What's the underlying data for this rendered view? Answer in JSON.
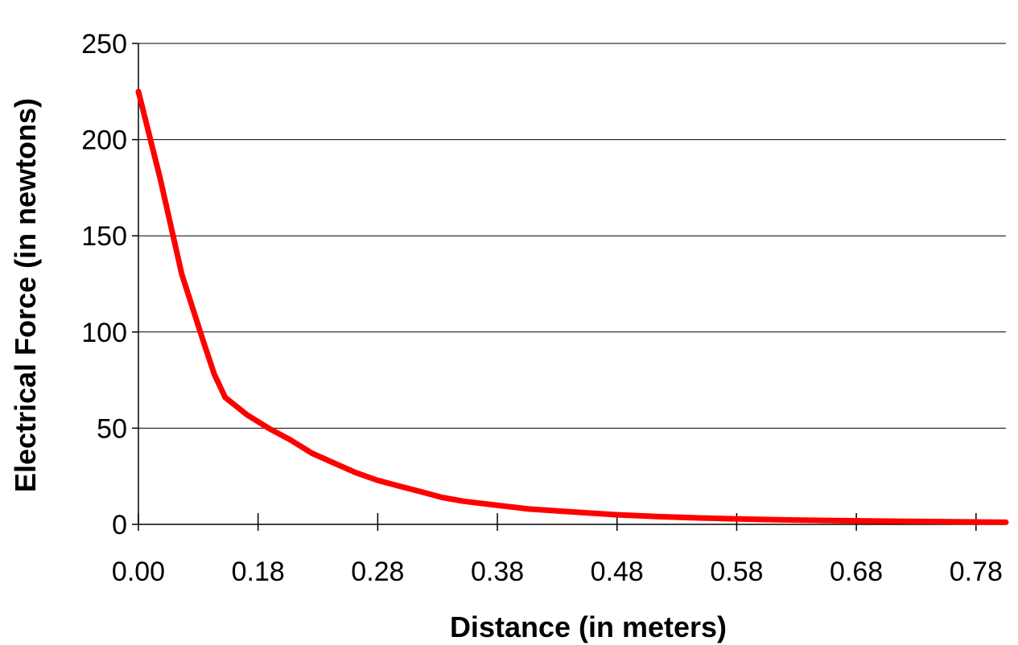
{
  "chart_data": {
    "type": "line",
    "xlabel": "Distance (in meters)",
    "ylabel": "Electrical Force (in newtons)",
    "x_tick_labels": [
      "0.00",
      "0.18",
      "0.28",
      "0.38",
      "0.48",
      "0.58",
      "0.68",
      "0.78"
    ],
    "y_ticks": [
      0,
      50,
      100,
      150,
      200,
      250
    ],
    "ylim": [
      0,
      250
    ],
    "grid": "horizontal",
    "series": [
      {
        "color": "#ff0000",
        "points": [
          [
            0.0,
            225
          ],
          [
            0.02,
            180
          ],
          [
            0.04,
            130
          ],
          [
            0.06,
            95
          ],
          [
            0.07,
            78
          ],
          [
            0.08,
            66
          ],
          [
            0.1,
            57
          ],
          [
            0.12,
            50
          ],
          [
            0.14,
            44
          ],
          [
            0.16,
            37
          ],
          [
            0.18,
            32
          ],
          [
            0.2,
            27
          ],
          [
            0.22,
            23
          ],
          [
            0.24,
            20
          ],
          [
            0.26,
            17
          ],
          [
            0.28,
            14
          ],
          [
            0.3,
            12
          ],
          [
            0.33,
            10
          ],
          [
            0.36,
            8
          ],
          [
            0.4,
            6.5
          ],
          [
            0.44,
            5
          ],
          [
            0.48,
            4
          ],
          [
            0.52,
            3.3
          ],
          [
            0.56,
            2.7
          ],
          [
            0.6,
            2.3
          ],
          [
            0.64,
            2
          ],
          [
            0.68,
            1.7
          ],
          [
            0.72,
            1.5
          ],
          [
            0.76,
            1.3
          ],
          [
            0.8,
            1.1
          ]
        ]
      }
    ]
  }
}
